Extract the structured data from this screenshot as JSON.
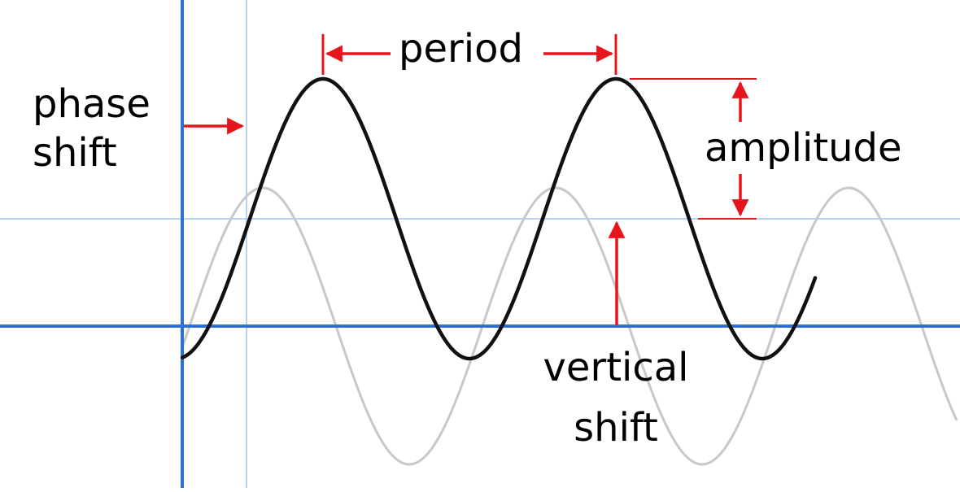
{
  "labels": {
    "period": "period",
    "amplitude": "amplitude",
    "phase_shift_line1": "phase",
    "phase_shift_line2": "shift",
    "vertical_shift_line1": "vertical",
    "vertical_shift_line2": "shift"
  },
  "colors": {
    "axis": "#2f6fd6",
    "guide": "#9ec3ea",
    "shifted_curve": "#111111",
    "reference_curve": "#c8c8c8",
    "annotation_arrow": "#e8141b"
  }
}
